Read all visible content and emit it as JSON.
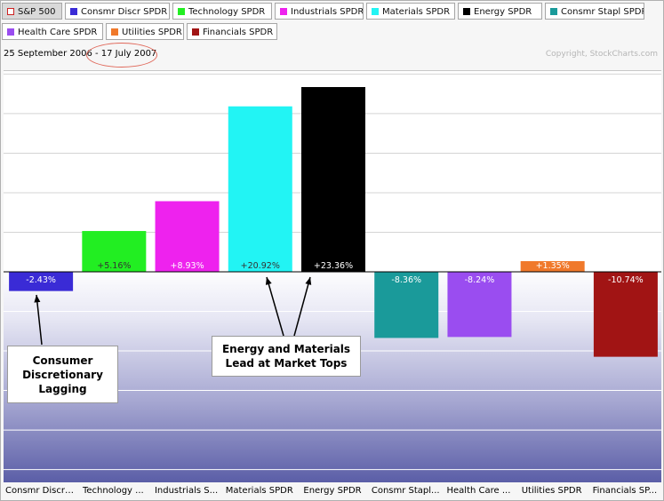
{
  "legend": [
    {
      "label": "S&P 500",
      "color": "#ffffff",
      "active": true
    },
    {
      "label": "Consmr Discr SPDR",
      "color": "#3a2bd6"
    },
    {
      "label": "Technology SPDR",
      "color": "#22ee22"
    },
    {
      "label": "Industrials SPDR",
      "color": "#ee22ee"
    },
    {
      "label": "Materials SPDR",
      "color": "#22f4f4"
    },
    {
      "label": "Energy SPDR",
      "color": "#000000"
    },
    {
      "label": "Consmr Stapl SPDR",
      "color": "#1a9a9a"
    },
    {
      "label": "Health Care SPDR",
      "color": "#9a4df0"
    },
    {
      "label": "Utilities SPDR",
      "color": "#f0792b"
    },
    {
      "label": "Financials SPDR",
      "color": "#a11414"
    }
  ],
  "header": {
    "date_start": "25 September 2006",
    "date_sep": " - ",
    "date_end": "17 July 2007",
    "copyright": "Copyright, StockCharts.com"
  },
  "annotations": {
    "consumer": [
      "Consumer",
      "Discretionary",
      "Lagging"
    ],
    "energy": [
      "Energy and Materials",
      "Lead at Market Tops"
    ]
  },
  "chart_data": {
    "type": "bar",
    "categories": [
      "Consmr Discr ...",
      "Technology ...",
      "Industrials S...",
      "Materials SPDR",
      "Energy SPDR",
      "Consmr Stapl...",
      "Health Care ...",
      "Utilities SPDR",
      "Financials SP..."
    ],
    "values": [
      -2.43,
      5.16,
      8.93,
      20.92,
      23.36,
      -8.36,
      -8.24,
      1.35,
      -10.74
    ],
    "data_labels": [
      "-2.43%",
      "+5.16%",
      "+8.93%",
      "+20.92%",
      "+23.36%",
      "-8.36%",
      "-8.24%",
      "+1.35%",
      "-10.74%"
    ],
    "colors": [
      "#3a2bd6",
      "#22ee22",
      "#ee22ee",
      "#22f4f4",
      "#000000",
      "#1a9a9a",
      "#9a4df0",
      "#f0792b",
      "#a11414"
    ],
    "ylim": [
      -26,
      26
    ],
    "grid": true
  }
}
